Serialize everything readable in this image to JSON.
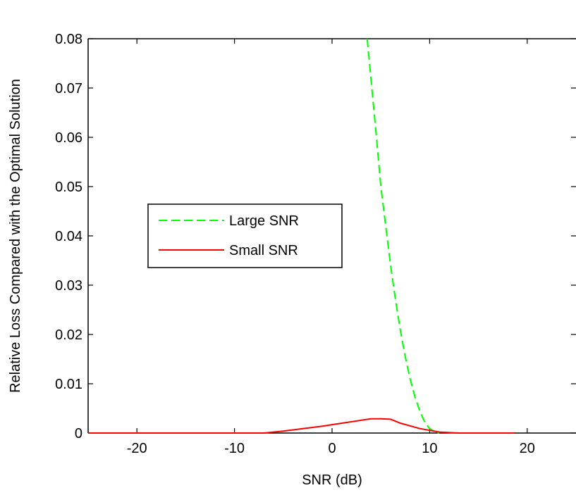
{
  "chart_data": {
    "type": "line",
    "title": "",
    "xlabel": "SNR (dB)",
    "ylabel": "Relative Loss Compared with the Optimal Solution",
    "xlim": [
      -25,
      25
    ],
    "ylim": [
      0,
      0.08
    ],
    "xticks": [
      -20,
      -10,
      0,
      10,
      20
    ],
    "xtick_labels": [
      "-20",
      "-10",
      "0",
      "10",
      "20"
    ],
    "yticks": [
      0,
      0.01,
      0.02,
      0.03,
      0.04,
      0.05,
      0.06,
      0.07,
      0.08
    ],
    "ytick_labels": [
      "0",
      "0.01",
      "0.02",
      "0.03",
      "0.04",
      "0.05",
      "0.06",
      "0.07",
      "0.08"
    ],
    "grid": false,
    "legend_position": "center-left",
    "series": [
      {
        "name": "Large SNR",
        "color": "#00ff00",
        "style": "dashed",
        "x": [
          3.6,
          4.0,
          4.5,
          5.0,
          5.5,
          6.0,
          6.5,
          7.0,
          7.5,
          8.0,
          8.5,
          9.0,
          9.5,
          10.0,
          10.5,
          11.0
        ],
        "y": [
          0.08,
          0.0715,
          0.061,
          0.05,
          0.042,
          0.034,
          0.027,
          0.0208,
          0.0155,
          0.011,
          0.0073,
          0.0044,
          0.0022,
          0.0009,
          0.0003,
          0.0
        ]
      },
      {
        "name": "Small SNR",
        "color": "#ff0000",
        "style": "solid",
        "x": [
          -25,
          -7,
          -5,
          -3,
          -1,
          1,
          3,
          4,
          5,
          6,
          7,
          9,
          11,
          13,
          15,
          18.7
        ],
        "y": [
          0.0,
          0.0,
          0.0004,
          0.0009,
          0.0014,
          0.002,
          0.0026,
          0.0029,
          0.0029,
          0.0028,
          0.002,
          0.0009,
          0.0002,
          0.0,
          0.0,
          0.0
        ]
      }
    ]
  }
}
